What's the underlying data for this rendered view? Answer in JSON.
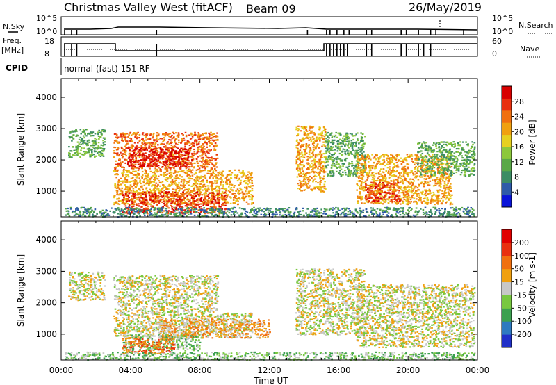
{
  "header": {
    "title": "Christmas Valley West (fitACF)",
    "beam": "Beam 09",
    "date": "26/May/2019"
  },
  "status_panels": {
    "nsky_label": "N.Sky",
    "nsearch_label": "N.Search",
    "nsky_ticks": [
      "10^5",
      "10^0"
    ],
    "nsearch_ticks": [
      "10^5",
      "10^0"
    ],
    "freq_label": "Freq.",
    "freq_unit": "[MHz]",
    "freq_ticks": [
      "18",
      "8"
    ],
    "nave_label": "Nave",
    "nave_ticks": [
      "60",
      "0"
    ],
    "cpid_label": "CPID",
    "cpid_text": "normal (fast) 151 RF"
  },
  "x_axis": {
    "label": "Time UT",
    "ticks": [
      "00:00",
      "04:00",
      "08:00",
      "12:00",
      "16:00",
      "20:00",
      "00:00"
    ]
  },
  "chart_data": [
    {
      "type": "heatmap",
      "panel": "power",
      "ylabel": "Slant Range [km]",
      "yticks": [
        1000,
        2000,
        3000,
        4000
      ],
      "ylim": [
        180,
        4600
      ],
      "xlim": [
        0,
        24
      ],
      "colorbar": {
        "label": "Power [dB]",
        "ticks": [
          "4",
          "8",
          "12",
          "16",
          "20",
          "24",
          "28"
        ],
        "colors": [
          "#0a14d8",
          "#2e5aa8",
          "#3c8c64",
          "#5aa848",
          "#8cc83c",
          "#e6d020",
          "#f0a010",
          "#f07010",
          "#e83010",
          "#d80000"
        ]
      },
      "regions": [
        {
          "t0": 0.4,
          "t1": 2.5,
          "r0": 2100,
          "r1": 3000,
          "level": 3
        },
        {
          "t0": 3.0,
          "t1": 9.0,
          "r0": 1700,
          "r1": 2900,
          "level": 7
        },
        {
          "t0": 3.8,
          "t1": 7.5,
          "r0": 1800,
          "r1": 2400,
          "level": 9
        },
        {
          "t0": 3.0,
          "t1": 11.0,
          "r0": 600,
          "r1": 1700,
          "level": 6
        },
        {
          "t0": 3.5,
          "t1": 9.5,
          "r0": 300,
          "r1": 1000,
          "level": 8
        },
        {
          "t0": 13.5,
          "t1": 15.2,
          "r0": 1000,
          "r1": 3100,
          "level": 6
        },
        {
          "t0": 15.2,
          "t1": 17.5,
          "r0": 1500,
          "r1": 2900,
          "level": 3
        },
        {
          "t0": 17.0,
          "t1": 22.5,
          "r0": 600,
          "r1": 2200,
          "level": 6
        },
        {
          "t0": 17.5,
          "t1": 19.5,
          "r0": 700,
          "r1": 1300,
          "level": 8
        },
        {
          "t0": 20.5,
          "t1": 23.8,
          "r0": 1500,
          "r1": 2600,
          "level": 3
        },
        {
          "t0": 0.2,
          "t1": 23.8,
          "r0": 200,
          "r1": 500,
          "level": 2
        }
      ]
    },
    {
      "type": "heatmap",
      "panel": "velocity",
      "ylabel": "Slant Range [km]",
      "yticks": [
        1000,
        2000,
        3000,
        4000
      ],
      "ylim": [
        180,
        4600
      ],
      "xlim": [
        0,
        24
      ],
      "colorbar": {
        "label": "Velocity [m s-1]",
        "ticks": [
          "200",
          "100",
          "50",
          "15",
          "-15",
          "-50",
          "-100",
          "-200"
        ],
        "colors": [
          "#2030c8",
          "#2e7ac0",
          "#3ca050",
          "#78c840",
          "#c8c8c8",
          "#f0a010",
          "#f07010",
          "#e83010",
          "#e00000"
        ]
      },
      "regions": [
        {
          "t0": 0.4,
          "t1": 2.5,
          "r0": 2100,
          "r1": 3000,
          "level": 4
        },
        {
          "t0": 3.0,
          "t1": 9.0,
          "r0": 1700,
          "r1": 2900,
          "level": 4
        },
        {
          "t0": 3.0,
          "t1": 11.0,
          "r0": 900,
          "r1": 1700,
          "level": 4
        },
        {
          "t0": 5.5,
          "t1": 12.0,
          "r0": 900,
          "r1": 1500,
          "level": 5
        },
        {
          "t0": 3.5,
          "t1": 8.0,
          "r0": 500,
          "r1": 1000,
          "level": 3
        },
        {
          "t0": 3.5,
          "t1": 6.5,
          "r0": 400,
          "r1": 900,
          "level": 6
        },
        {
          "t0": 13.5,
          "t1": 17.5,
          "r0": 1000,
          "r1": 3100,
          "level": 4
        },
        {
          "t0": 17.0,
          "t1": 23.8,
          "r0": 600,
          "r1": 2600,
          "level": 4
        },
        {
          "t0": 0.2,
          "t1": 23.8,
          "r0": 200,
          "r1": 450,
          "level": 3
        }
      ]
    }
  ]
}
